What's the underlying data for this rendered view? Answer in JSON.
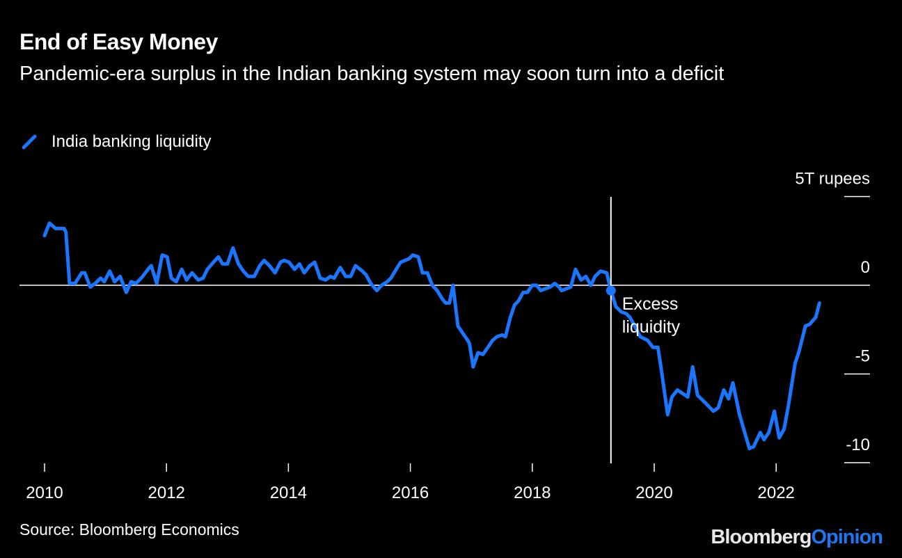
{
  "title": "End of Easy Money",
  "subtitle": "Pandemic-era surplus in the Indian banking system may soon turn into a deficit",
  "source": "Source: Bloomberg Economics",
  "logo": {
    "brand": "Bloomberg",
    "section": "Opinion"
  },
  "colors": {
    "series": "#1a76ff",
    "background": "#000000",
    "axis": "#ffffff"
  },
  "chart_data": {
    "type": "line",
    "title": "End of Easy Money",
    "subtitle": "Pandemic-era surplus in the Indian banking system may soon turn into a deficit",
    "xlabel": "",
    "ylabel": "",
    "y_unit_label": "5T rupees",
    "xlim": [
      2009.6,
      2023.3
    ],
    "ylim": [
      -10,
      5
    ],
    "x_ticks": [
      "2010",
      "2012",
      "2014",
      "2016",
      "2018",
      "2020",
      "2022"
    ],
    "y_ticks": [
      {
        "value": 5,
        "label": "5T rupees"
      },
      {
        "value": 0,
        "label": "0"
      },
      {
        "value": -5,
        "label": "-5"
      },
      {
        "value": -10,
        "label": "-10"
      }
    ],
    "grid": false,
    "legend": "top-left",
    "annotation": {
      "x": 2019.29,
      "y": -0.3,
      "text_lines": [
        "Excess",
        "liquidity"
      ]
    },
    "series": [
      {
        "name": "India banking liquidity",
        "x": [
          2010.0,
          2010.08,
          2010.18,
          2010.32,
          2010.35,
          2010.41,
          2010.5,
          2010.61,
          2010.66,
          2010.75,
          2010.83,
          2010.92,
          2010.98,
          2011.07,
          2011.15,
          2011.24,
          2011.34,
          2011.42,
          2011.5,
          2011.61,
          2011.72,
          2011.75,
          2011.84,
          2011.93,
          2012.01,
          2012.08,
          2012.16,
          2012.25,
          2012.33,
          2012.42,
          2012.52,
          2012.6,
          2012.67,
          2012.77,
          2012.85,
          2012.92,
          2013.0,
          2013.09,
          2013.18,
          2013.26,
          2013.34,
          2013.44,
          2013.53,
          2013.6,
          2013.69,
          2013.78,
          2013.87,
          2013.93,
          2014.01,
          2014.1,
          2014.18,
          2014.26,
          2014.35,
          2014.43,
          2014.52,
          2014.61,
          2014.69,
          2014.75,
          2014.85,
          2014.94,
          2015.02,
          2015.1,
          2015.21,
          2015.27,
          2015.35,
          2015.45,
          2015.53,
          2015.62,
          2015.68,
          2015.75,
          2015.84,
          2015.91,
          2015.98,
          2016.04,
          2016.13,
          2016.2,
          2016.28,
          2016.36,
          2016.44,
          2016.53,
          2016.58,
          2016.64,
          2016.7,
          2016.78,
          2016.86,
          2016.94,
          2016.97,
          2017.03,
          2017.11,
          2017.19,
          2017.27,
          2017.35,
          2017.42,
          2017.51,
          2017.56,
          2017.64,
          2017.71,
          2017.77,
          2017.85,
          2017.92,
          2018.0,
          2018.07,
          2018.14,
          2018.21,
          2018.29,
          2018.37,
          2018.44,
          2018.48,
          2018.63,
          2018.71,
          2018.8,
          2018.88,
          2018.96,
          2019.03,
          2019.12,
          2019.22,
          2019.29,
          2019.37,
          2019.46,
          2019.54,
          2019.6,
          2019.68,
          2019.77,
          2019.89,
          2019.98,
          2020.06,
          2020.11,
          2020.22,
          2020.29,
          2020.38,
          2020.55,
          2020.63,
          2020.71,
          2020.83,
          2020.97,
          2021.05,
          2021.14,
          2021.22,
          2021.29,
          2021.4,
          2021.56,
          2021.63,
          2021.74,
          2021.8,
          2021.88,
          2021.97,
          2022.05,
          2022.13,
          2022.2,
          2022.31,
          2022.37,
          2022.48,
          2022.55,
          2022.65,
          2022.71
        ],
        "y": [
          2.8,
          3.5,
          3.2,
          3.2,
          3.0,
          0.1,
          0.1,
          0.7,
          0.7,
          -0.1,
          0.1,
          0.4,
          0.2,
          0.8,
          0.2,
          0.5,
          -0.4,
          0.2,
          0.1,
          0.5,
          1.0,
          1.1,
          0.1,
          1.7,
          1.6,
          0.4,
          0.2,
          0.9,
          0.3,
          0.7,
          0.3,
          0.4,
          0.9,
          1.3,
          1.6,
          1.2,
          1.2,
          2.1,
          1.2,
          0.8,
          0.5,
          0.5,
          1.1,
          1.4,
          1.1,
          0.7,
          1.3,
          1.4,
          1.3,
          0.9,
          1.2,
          0.7,
          1.1,
          1.3,
          0.4,
          0.3,
          0.5,
          0.4,
          1.0,
          0.5,
          0.5,
          1.1,
          0.8,
          0.6,
          0.1,
          -0.3,
          0.0,
          0.2,
          0.4,
          0.8,
          1.3,
          1.4,
          1.5,
          1.7,
          1.6,
          0.7,
          0.7,
          0.0,
          -0.3,
          -0.8,
          -1.0,
          -1.0,
          0.0,
          -2.3,
          -2.7,
          -3.1,
          -3.3,
          -4.6,
          -3.8,
          -3.9,
          -3.5,
          -3.1,
          -2.9,
          -2.8,
          -2.9,
          -1.8,
          -1.1,
          -0.9,
          -0.4,
          -0.4,
          0.0,
          0.0,
          -0.3,
          -0.2,
          -0.1,
          0.1,
          -0.1,
          -0.3,
          -0.1,
          0.9,
          0.3,
          0.5,
          0.0,
          0.5,
          0.8,
          0.7,
          -0.3,
          -1.2,
          -1.5,
          -1.6,
          -1.8,
          -2.3,
          -2.9,
          -3.1,
          -3.5,
          -3.5,
          -4.6,
          -7.3,
          -6.3,
          -5.9,
          -6.3,
          -4.6,
          -6.2,
          -6.6,
          -7.1,
          -6.9,
          -5.9,
          -6.4,
          -5.5,
          -7.3,
          -9.2,
          -9.1,
          -8.3,
          -8.7,
          -8.3,
          -7.1,
          -8.6,
          -8.1,
          -6.8,
          -4.4,
          -3.8,
          -2.3,
          -2.2,
          -1.8,
          -1.0
        ]
      }
    ]
  }
}
